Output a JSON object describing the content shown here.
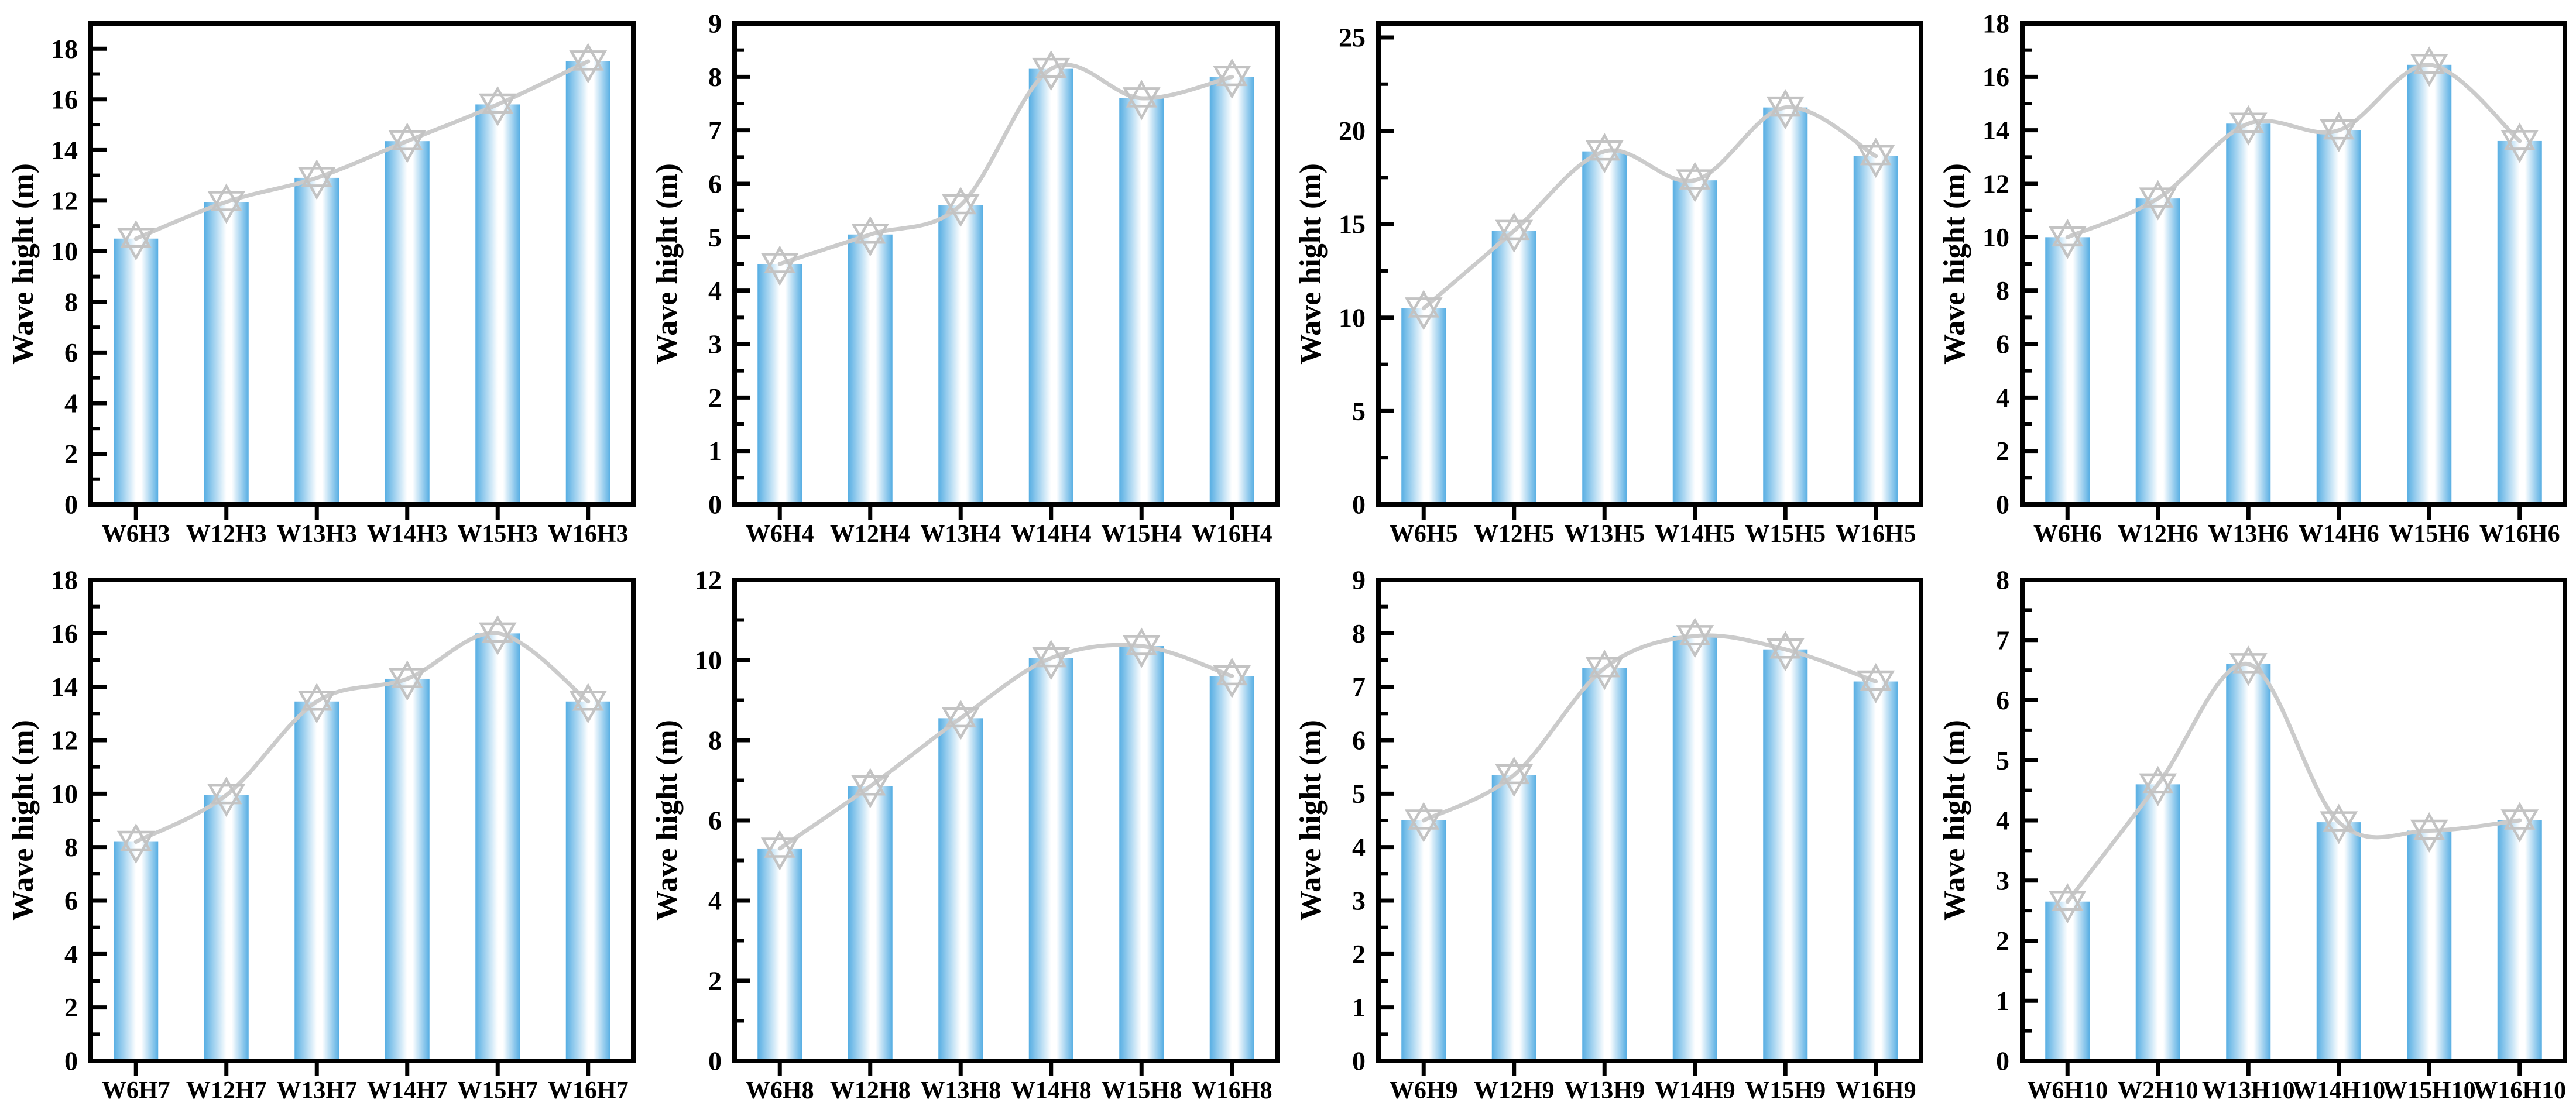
{
  "page": {
    "background": "#ffffff"
  },
  "styles": {
    "bar_edge_color": "#57AEE3",
    "bar_center_color": "#FFFFFF",
    "line_color": "#CBCBCB",
    "marker_color": "#C3C3C3",
    "axis_color": "#000000",
    "text_color": "#000000"
  },
  "chart_data": [
    {
      "type": "bar",
      "panel": "H3",
      "ylabel": "Wave hight (m)",
      "categories": [
        "W6H3",
        "W12H3",
        "W13H3",
        "W14H3",
        "W15H3",
        "W16H3"
      ],
      "values": [
        10.5,
        11.95,
        12.9,
        14.35,
        15.8,
        17.5
      ],
      "ytick_step": 2,
      "ymax_label": 18,
      "ylim": [
        0,
        19
      ],
      "legend": "none",
      "grid": "off"
    },
    {
      "type": "bar",
      "panel": "H4",
      "ylabel": "Wave hight (m)",
      "categories": [
        "W6H4",
        "W12H4",
        "W13H4",
        "W14H4",
        "W15H4",
        "W16H4"
      ],
      "values": [
        4.5,
        5.05,
        5.6,
        8.15,
        7.6,
        8.0
      ],
      "ytick_step": 1,
      "ymax_label": 9,
      "ylim": [
        0,
        9
      ],
      "legend": "none",
      "grid": "off"
    },
    {
      "type": "bar",
      "panel": "H5",
      "ylabel": "Wave hight (m)",
      "categories": [
        "W6H5",
        "W12H5",
        "W13H5",
        "W14H5",
        "W15H5",
        "W16H5"
      ],
      "values": [
        10.5,
        14.65,
        18.9,
        17.35,
        21.25,
        18.65
      ],
      "ytick_step": 5,
      "ymax_label": 25,
      "ylim": [
        0,
        25.75
      ],
      "legend": "none",
      "grid": "off"
    },
    {
      "type": "bar",
      "panel": "H6",
      "ylabel": "Wave hight (m)",
      "categories": [
        "W6H6",
        "W12H6",
        "W13H6",
        "W14H6",
        "W15H6",
        "W16H6"
      ],
      "values": [
        10.0,
        11.45,
        14.25,
        14.0,
        16.45,
        13.6
      ],
      "ytick_step": 2,
      "ymax_label": 18,
      "ylim": [
        0,
        18
      ],
      "legend": "none",
      "grid": "off"
    },
    {
      "type": "bar",
      "panel": "H7",
      "ylabel": "Wave hight (m)",
      "categories": [
        "W6H7",
        "W12H7",
        "W13H7",
        "W14H7",
        "W15H7",
        "W16H7"
      ],
      "values": [
        8.2,
        9.95,
        13.45,
        14.3,
        16.0,
        13.45
      ],
      "ytick_step": 2,
      "ymax_label": 18,
      "ylim": [
        0,
        18
      ],
      "legend": "none",
      "grid": "off"
    },
    {
      "type": "bar",
      "panel": "H8",
      "ylabel": "Wave hight (m)",
      "categories": [
        "W6H8",
        "W12H8",
        "W13H8",
        "W14H8",
        "W15H8",
        "W16H8"
      ],
      "values": [
        5.3,
        6.85,
        8.55,
        10.05,
        10.35,
        9.6
      ],
      "ytick_step": 2,
      "ymax_label": 12,
      "ylim": [
        0,
        12
      ],
      "legend": "none",
      "grid": "off"
    },
    {
      "type": "bar",
      "panel": "H9",
      "ylabel": "Wave hight (m)",
      "categories": [
        "W6H9",
        "W12H9",
        "W13H9",
        "W14H9",
        "W15H9",
        "W16H9"
      ],
      "values": [
        4.5,
        5.35,
        7.35,
        7.95,
        7.7,
        7.1
      ],
      "ytick_step": 1,
      "ymax_label": 9,
      "ylim": [
        0,
        9
      ],
      "legend": "none",
      "grid": "off"
    },
    {
      "type": "bar",
      "panel": "H10",
      "ylabel": "Wave hight (m)",
      "categories": [
        "W6H10",
        "W2H10",
        "W13H10",
        "W14H10",
        "W15H10",
        "W16H10"
      ],
      "values": [
        2.65,
        4.6,
        6.6,
        3.97,
        3.83,
        4.0
      ],
      "ytick_step": 1,
      "ymax_label": 8,
      "ylim": [
        0,
        8
      ],
      "legend": "none",
      "grid": "off"
    }
  ]
}
